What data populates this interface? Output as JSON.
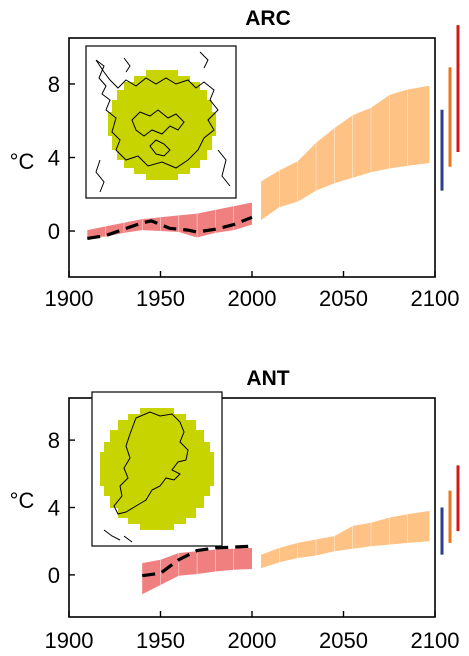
{
  "chart_data": [
    {
      "type": "area",
      "title": "ARC",
      "ylabel": "°C",
      "xlim": [
        1900,
        2100
      ],
      "ylim": [
        -2.5,
        10.5
      ],
      "xticks": [
        1900,
        1950,
        2000,
        2050,
        2100
      ],
      "yticks": [
        0,
        4,
        8
      ],
      "grid": false,
      "inset_map": "arctic-map",
      "series": [
        {
          "kind": "band",
          "role": "historical-model-range",
          "color": "#f08080",
          "x": [
            1910,
            1920,
            1930,
            1940,
            1950,
            1960,
            1970,
            1980,
            1990,
            2000
          ],
          "low": [
            -0.35,
            -0.3,
            -0.1,
            0.05,
            0.0,
            -0.05,
            -0.35,
            -0.1,
            0.05,
            0.35
          ],
          "high": [
            0.05,
            0.25,
            0.45,
            0.65,
            0.75,
            0.85,
            0.95,
            1.15,
            1.35,
            1.55
          ]
        },
        {
          "kind": "band",
          "role": "projection-range",
          "color": "#ffc285",
          "x": [
            2005,
            2015,
            2025,
            2035,
            2045,
            2055,
            2065,
            2075,
            2085,
            2097
          ],
          "low": [
            0.6,
            1.3,
            1.6,
            2.2,
            2.6,
            2.9,
            3.2,
            3.4,
            3.55,
            3.7
          ],
          "high": [
            2.7,
            3.3,
            3.8,
            4.8,
            5.6,
            6.3,
            6.7,
            7.4,
            7.7,
            7.9
          ]
        },
        {
          "kind": "line",
          "role": "observed",
          "style": "dashed",
          "color": "#000000",
          "x": [
            1910,
            1920,
            1930,
            1940,
            1945,
            1950,
            1955,
            1960,
            1965,
            1970,
            1980,
            1990,
            2000
          ],
          "y": [
            -0.4,
            -0.25,
            0.1,
            0.45,
            0.55,
            0.35,
            0.15,
            0.1,
            0.05,
            -0.05,
            0.1,
            0.35,
            0.75
          ]
        }
      ],
      "bars_2100": [
        {
          "color": "#2e3d8f",
          "low": 2.2,
          "high": 6.6
        },
        {
          "color": "#e8761c",
          "low": 3.5,
          "high": 8.9
        },
        {
          "color": "#d01818",
          "low": 4.3,
          "high": 11.2
        }
      ]
    },
    {
      "type": "area",
      "title": "ANT",
      "ylabel": "°C",
      "xlim": [
        1900,
        2100
      ],
      "ylim": [
        -2.5,
        10.5
      ],
      "xticks": [
        1900,
        1950,
        2000,
        2050,
        2100
      ],
      "yticks": [
        0,
        4,
        8
      ],
      "grid": false,
      "inset_map": "antarctic-map",
      "series": [
        {
          "kind": "band",
          "role": "historical-model-range",
          "color": "#f08080",
          "x": [
            1940,
            1950,
            1960,
            1970,
            1980,
            1990,
            2000
          ],
          "low": [
            -1.15,
            -0.6,
            -0.05,
            0.05,
            0.2,
            0.3,
            0.35
          ],
          "high": [
            0.7,
            0.9,
            1.3,
            1.4,
            1.5,
            1.55,
            1.6
          ]
        },
        {
          "kind": "band",
          "role": "projection-range",
          "color": "#ffc285",
          "x": [
            2005,
            2015,
            2025,
            2035,
            2045,
            2055,
            2065,
            2075,
            2085,
            2097
          ],
          "low": [
            0.4,
            0.75,
            1.0,
            1.15,
            1.4,
            1.55,
            1.7,
            1.8,
            1.9,
            2.0
          ],
          "high": [
            1.2,
            1.6,
            1.9,
            2.1,
            2.3,
            2.9,
            3.1,
            3.4,
            3.6,
            3.8
          ]
        },
        {
          "kind": "line",
          "role": "observed",
          "style": "dashed",
          "color": "#000000",
          "x": [
            1940,
            1950,
            1960,
            1970,
            1980,
            1990,
            2000
          ],
          "y": [
            -0.05,
            0.1,
            0.9,
            1.45,
            1.6,
            1.65,
            1.7
          ]
        }
      ],
      "bars_2100": [
        {
          "color": "#2e3d8f",
          "low": 1.2,
          "high": 4.0
        },
        {
          "color": "#e8761c",
          "low": 1.9,
          "high": 5.0
        },
        {
          "color": "#d01818",
          "low": 2.6,
          "high": 6.5
        }
      ]
    }
  ]
}
